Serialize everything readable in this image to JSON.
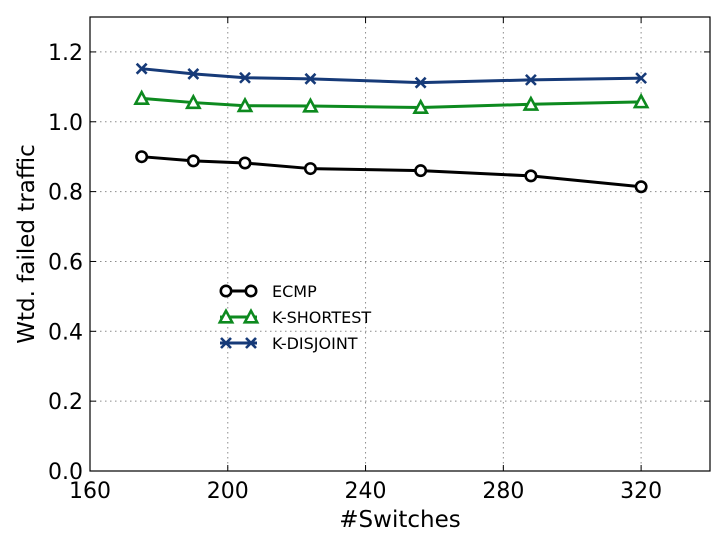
{
  "chart_data": {
    "type": "line",
    "title": "",
    "xlabel": "#Switches",
    "ylabel": "Wtd. failed traffic",
    "xlim": [
      160,
      340
    ],
    "ylim": [
      0.0,
      1.3
    ],
    "xticks": [
      160,
      200,
      240,
      280,
      320
    ],
    "xtick_labels": [
      "160",
      "200",
      "240",
      "280",
      "320"
    ],
    "yticks": [
      0.0,
      0.2,
      0.4,
      0.6,
      0.8,
      1.0,
      1.2
    ],
    "ytick_labels": [
      "0.0",
      "0.2",
      "0.4",
      "0.6",
      "0.8",
      "1.0",
      "1.2"
    ],
    "grid": true,
    "legend_position": "center-left",
    "x": [
      175,
      190,
      205,
      224,
      256,
      288,
      320
    ],
    "series": [
      {
        "name": "ECMP",
        "color": "#000000",
        "marker": "circle",
        "values": [
          0.9,
          0.888,
          0.882,
          0.866,
          0.86,
          0.845,
          0.814
        ]
      },
      {
        "name": "K-SHORTEST",
        "color": "#0d8a1f",
        "marker": "triangle",
        "values": [
          1.067,
          1.055,
          1.046,
          1.045,
          1.041,
          1.05,
          1.057
        ]
      },
      {
        "name": "K-DISJOINT",
        "color": "#163a78",
        "marker": "x",
        "values": [
          1.152,
          1.137,
          1.126,
          1.123,
          1.112,
          1.12,
          1.125
        ]
      }
    ]
  }
}
